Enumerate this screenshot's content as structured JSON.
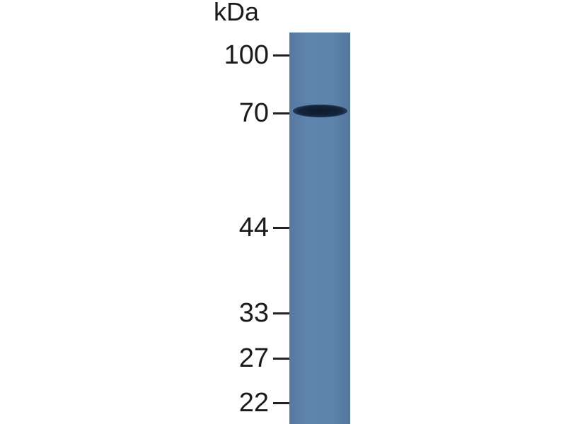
{
  "unit_label": "kDa",
  "markers": [
    {
      "label": "100",
      "kda": 100
    },
    {
      "label": "70",
      "kda": 70
    },
    {
      "label": "44",
      "kda": 44
    },
    {
      "label": "33",
      "kda": 33
    },
    {
      "label": "27",
      "kda": 27
    },
    {
      "label": "22",
      "kda": 22
    }
  ],
  "lane": {
    "color": "#5a7fa8",
    "bands": [
      {
        "kda": 70,
        "intensity": "strong",
        "color": "#13243a"
      }
    ]
  }
}
